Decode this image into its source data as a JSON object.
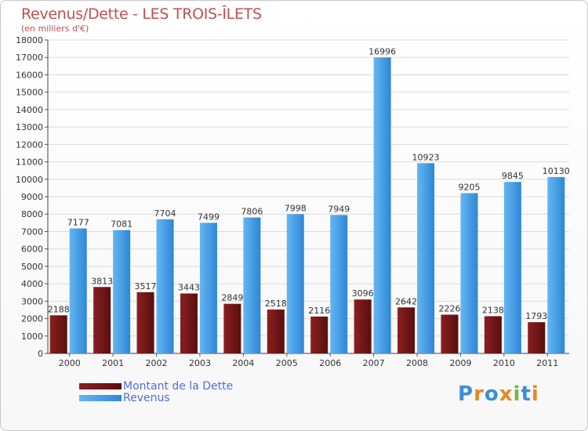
{
  "chart_data": {
    "type": "bar",
    "title": "Revenus/Dette - LES TROIS-ÎLETS",
    "subtitle": "(en milliers d'€)",
    "categories": [
      "2000",
      "2001",
      "2002",
      "2003",
      "2004",
      "2005",
      "2006",
      "2007",
      "2008",
      "2009",
      "2010",
      "2011"
    ],
    "series": [
      {
        "name": "Montant de la Dette",
        "color": "#6e1616",
        "values": [
          2188,
          3813,
          3517,
          3443,
          2849,
          2518,
          2116,
          3096,
          2642,
          2226,
          2138,
          1793
        ]
      },
      {
        "name": "Revenus",
        "color": "#4aa3e8",
        "values": [
          7177,
          7081,
          7704,
          7499,
          7806,
          7998,
          7949,
          16996,
          10923,
          9205,
          9845,
          10130
        ]
      }
    ],
    "yticks": [
      0,
      1000,
      2000,
      3000,
      4000,
      5000,
      6000,
      7000,
      8000,
      9000,
      10000,
      11000,
      12000,
      13000,
      14000,
      15000,
      16000,
      17000,
      18000
    ],
    "ylim": [
      0,
      18000
    ],
    "xlabel": "",
    "ylabel": ""
  },
  "logo": {
    "text": "Proxiti",
    "letters": [
      "P",
      "r",
      "o",
      "x",
      "i",
      "t",
      "i"
    ],
    "colors": [
      "#3a8fd6",
      "#e8891c",
      "#3a8fd6",
      "#e8891c",
      "#7ab73a",
      "#3a8fd6",
      "#e8891c"
    ]
  }
}
